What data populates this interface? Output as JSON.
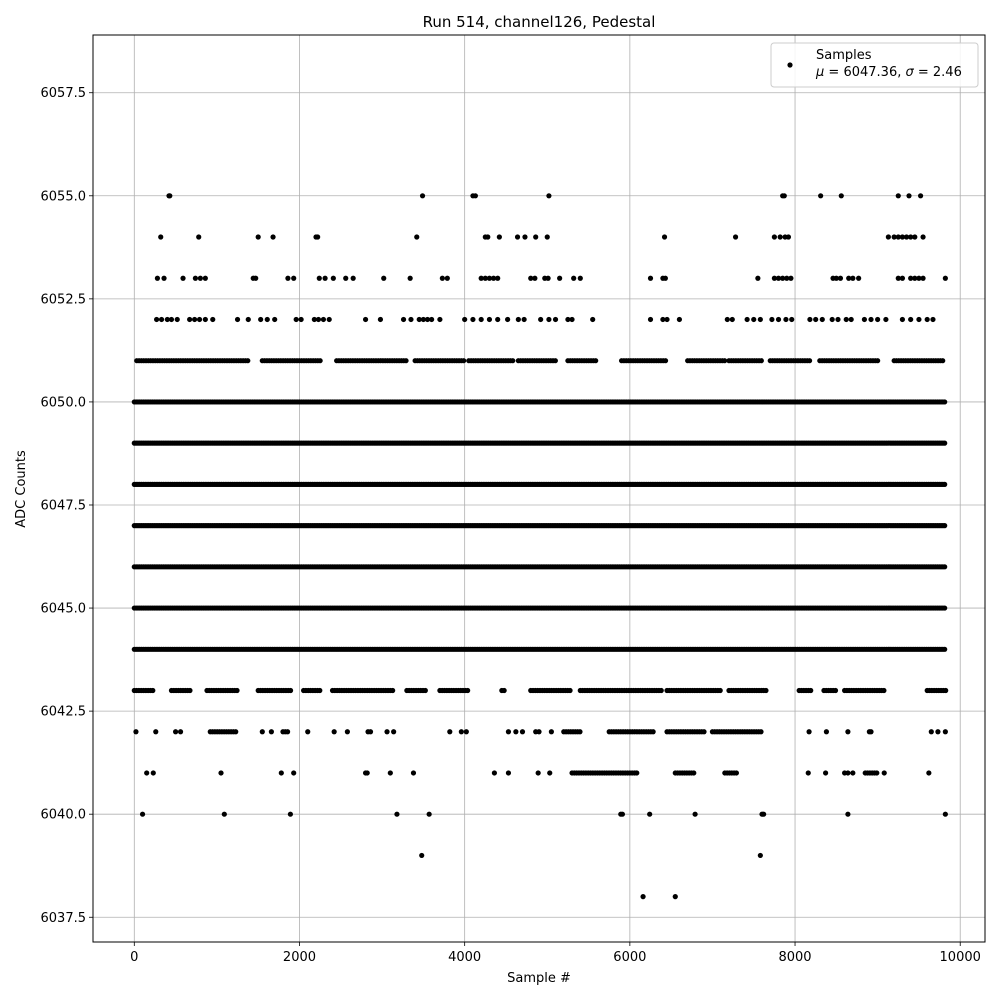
{
  "chart_data": {
    "type": "scatter",
    "title": "Run 514, channel126, Pedestal",
    "xlabel": "Sample #",
    "ylabel": "ADC Counts",
    "xlim": [
      -500,
      10300
    ],
    "ylim": [
      6036.9,
      6058.9
    ],
    "xticks": [
      0,
      2000,
      4000,
      6000,
      8000,
      10000
    ],
    "yticks": [
      6037.5,
      6040.0,
      6042.5,
      6045.0,
      6047.5,
      6050.0,
      6052.5,
      6055.0,
      6057.5
    ],
    "xtick_labels": [
      "0",
      "2000",
      "4000",
      "6000",
      "8000",
      "10000"
    ],
    "ytick_labels": [
      "6037.5",
      "6040.0",
      "6042.5",
      "6045.0",
      "6047.5",
      "6050.0",
      "6052.5",
      "6055.0",
      "6057.5"
    ],
    "grid": true,
    "legend_position": "top-right",
    "series": [
      {
        "name": "Samples",
        "stats_mu": "6047.36",
        "stats_sigma": "2.46",
        "color": "#000000",
        "marker": "circle",
        "n_samples": 9830,
        "x_range": [
          0,
          9830
        ],
        "dense_levels": [
          6044,
          6045,
          6046,
          6047,
          6048,
          6049,
          6050,
          6051
        ],
        "level_bands": [
          {
            "y": 6051,
            "segments": [
              [
                30,
                1380
              ],
              [
                1550,
                2250
              ],
              [
                2450,
                3300
              ],
              [
                3400,
                4000
              ],
              [
                4050,
                4600
              ],
              [
                4650,
                5100
              ],
              [
                5250,
                5600
              ],
              [
                5900,
                6450
              ],
              [
                6700,
                7150
              ],
              [
                7200,
                7600
              ],
              [
                7700,
                8200
              ],
              [
                8300,
                9000
              ],
              [
                9200,
                9800
              ]
            ]
          },
          {
            "y": 6050,
            "segments": [
              [
                0,
                9830
              ]
            ]
          },
          {
            "y": 6049,
            "segments": [
              [
                0,
                9830
              ]
            ]
          },
          {
            "y": 6048,
            "segments": [
              [
                0,
                9830
              ]
            ]
          },
          {
            "y": 6047,
            "segments": [
              [
                0,
                9830
              ]
            ]
          },
          {
            "y": 6046,
            "segments": [
              [
                0,
                9830
              ]
            ]
          },
          {
            "y": 6045,
            "segments": [
              [
                0,
                9830
              ]
            ]
          },
          {
            "y": 6044,
            "segments": [
              [
                0,
                9830
              ]
            ]
          },
          {
            "y": 6043,
            "segments": [
              [
                0,
                250
              ],
              [
                450,
                700
              ],
              [
                880,
                1250
              ],
              [
                1500,
                1900
              ],
              [
                2050,
                2250
              ],
              [
                2400,
                3150
              ],
              [
                3300,
                3550
              ],
              [
                3700,
                4050
              ],
              [
                4450,
                4500
              ],
              [
                4800,
                5300
              ],
              [
                5400,
                6400
              ],
              [
                6450,
                7100
              ],
              [
                7200,
                7650
              ],
              [
                8050,
                8200
              ],
              [
                8350,
                8500
              ],
              [
                8600,
                9100
              ],
              [
                9600,
                9830
              ]
            ]
          },
          {
            "y": 6042,
            "segments": [
              [
                920,
                1250
              ],
              [
                1800,
                1870
              ],
              [
                5200,
                5400
              ],
              [
                5750,
                6300
              ],
              [
                6450,
                6900
              ],
              [
                7000,
                7600
              ]
            ]
          },
          {
            "y": 6041,
            "segments": [
              [
                5300,
                6100
              ],
              [
                6550,
                6800
              ],
              [
                7150,
                7300
              ],
              [
                8850,
                9000
              ]
            ]
          }
        ],
        "sparse_points": [
          [
            420,
            6055
          ],
          [
            430,
            6055
          ],
          [
            3490,
            6055
          ],
          [
            4100,
            6055
          ],
          [
            4130,
            6055
          ],
          [
            5020,
            6055
          ],
          [
            7850,
            6055
          ],
          [
            7870,
            6055
          ],
          [
            8310,
            6055
          ],
          [
            8560,
            6055
          ],
          [
            9250,
            6055
          ],
          [
            9380,
            6055
          ],
          [
            9520,
            6055
          ],
          [
            320,
            6054
          ],
          [
            780,
            6054
          ],
          [
            1500,
            6054
          ],
          [
            1680,
            6054
          ],
          [
            2200,
            6054
          ],
          [
            2220,
            6054
          ],
          [
            3420,
            6054
          ],
          [
            4250,
            6054
          ],
          [
            4280,
            6054
          ],
          [
            4420,
            6054
          ],
          [
            4640,
            6054
          ],
          [
            4730,
            6054
          ],
          [
            4860,
            6054
          ],
          [
            5000,
            6054
          ],
          [
            6420,
            6054
          ],
          [
            7280,
            6054
          ],
          [
            7750,
            6054
          ],
          [
            7820,
            6054
          ],
          [
            7880,
            6054
          ],
          [
            7920,
            6054
          ],
          [
            9130,
            6054
          ],
          [
            9200,
            6054
          ],
          [
            9250,
            6054
          ],
          [
            9300,
            6054
          ],
          [
            9350,
            6054
          ],
          [
            9400,
            6054
          ],
          [
            9450,
            6054
          ],
          [
            9550,
            6054
          ],
          [
            280,
            6053
          ],
          [
            360,
            6053
          ],
          [
            590,
            6053
          ],
          [
            740,
            6053
          ],
          [
            800,
            6053
          ],
          [
            860,
            6053
          ],
          [
            1440,
            6053
          ],
          [
            1470,
            6053
          ],
          [
            1860,
            6053
          ],
          [
            1930,
            6053
          ],
          [
            2240,
            6053
          ],
          [
            2310,
            6053
          ],
          [
            2410,
            6053
          ],
          [
            2560,
            6053
          ],
          [
            2650,
            6053
          ],
          [
            3020,
            6053
          ],
          [
            3340,
            6053
          ],
          [
            3730,
            6053
          ],
          [
            3790,
            6053
          ],
          [
            4200,
            6053
          ],
          [
            4250,
            6053
          ],
          [
            4300,
            6053
          ],
          [
            4350,
            6053
          ],
          [
            4400,
            6053
          ],
          [
            4800,
            6053
          ],
          [
            4850,
            6053
          ],
          [
            4970,
            6053
          ],
          [
            5010,
            6053
          ],
          [
            5150,
            6053
          ],
          [
            5320,
            6053
          ],
          [
            5400,
            6053
          ],
          [
            6250,
            6053
          ],
          [
            6400,
            6053
          ],
          [
            6430,
            6053
          ],
          [
            7550,
            6053
          ],
          [
            7750,
            6053
          ],
          [
            7800,
            6053
          ],
          [
            7850,
            6053
          ],
          [
            7900,
            6053
          ],
          [
            7950,
            6053
          ],
          [
            8460,
            6053
          ],
          [
            8500,
            6053
          ],
          [
            8550,
            6053
          ],
          [
            8650,
            6053
          ],
          [
            8700,
            6053
          ],
          [
            8770,
            6053
          ],
          [
            9250,
            6053
          ],
          [
            9300,
            6053
          ],
          [
            9400,
            6053
          ],
          [
            9450,
            6053
          ],
          [
            9500,
            6053
          ],
          [
            9550,
            6053
          ],
          [
            9820,
            6053
          ],
          [
            270,
            6052
          ],
          [
            330,
            6052
          ],
          [
            400,
            6052
          ],
          [
            450,
            6052
          ],
          [
            520,
            6052
          ],
          [
            670,
            6052
          ],
          [
            730,
            6052
          ],
          [
            790,
            6052
          ],
          [
            860,
            6052
          ],
          [
            950,
            6052
          ],
          [
            1250,
            6052
          ],
          [
            1380,
            6052
          ],
          [
            1530,
            6052
          ],
          [
            1610,
            6052
          ],
          [
            1700,
            6052
          ],
          [
            1960,
            6052
          ],
          [
            2020,
            6052
          ],
          [
            2180,
            6052
          ],
          [
            2230,
            6052
          ],
          [
            2290,
            6052
          ],
          [
            2360,
            6052
          ],
          [
            2800,
            6052
          ],
          [
            2980,
            6052
          ],
          [
            3260,
            6052
          ],
          [
            3350,
            6052
          ],
          [
            3450,
            6052
          ],
          [
            3500,
            6052
          ],
          [
            3550,
            6052
          ],
          [
            3600,
            6052
          ],
          [
            3700,
            6052
          ],
          [
            4000,
            6052
          ],
          [
            4100,
            6052
          ],
          [
            4200,
            6052
          ],
          [
            4300,
            6052
          ],
          [
            4400,
            6052
          ],
          [
            4520,
            6052
          ],
          [
            4650,
            6052
          ],
          [
            4720,
            6052
          ],
          [
            4920,
            6052
          ],
          [
            5020,
            6052
          ],
          [
            5100,
            6052
          ],
          [
            5250,
            6052
          ],
          [
            5300,
            6052
          ],
          [
            5550,
            6052
          ],
          [
            6250,
            6052
          ],
          [
            6400,
            6052
          ],
          [
            6450,
            6052
          ],
          [
            6600,
            6052
          ],
          [
            7180,
            6052
          ],
          [
            7240,
            6052
          ],
          [
            7420,
            6052
          ],
          [
            7500,
            6052
          ],
          [
            7580,
            6052
          ],
          [
            7720,
            6052
          ],
          [
            7800,
            6052
          ],
          [
            7890,
            6052
          ],
          [
            7960,
            6052
          ],
          [
            8180,
            6052
          ],
          [
            8250,
            6052
          ],
          [
            8330,
            6052
          ],
          [
            8450,
            6052
          ],
          [
            8520,
            6052
          ],
          [
            8620,
            6052
          ],
          [
            8680,
            6052
          ],
          [
            8840,
            6052
          ],
          [
            8920,
            6052
          ],
          [
            9000,
            6052
          ],
          [
            9100,
            6052
          ],
          [
            9300,
            6052
          ],
          [
            9400,
            6052
          ],
          [
            9500,
            6052
          ],
          [
            9600,
            6052
          ],
          [
            9670,
            6052
          ],
          [
            20,
            6042
          ],
          [
            260,
            6042
          ],
          [
            500,
            6042
          ],
          [
            560,
            6042
          ],
          [
            1550,
            6042
          ],
          [
            1660,
            6042
          ],
          [
            2100,
            6042
          ],
          [
            2420,
            6042
          ],
          [
            2580,
            6042
          ],
          [
            2830,
            6042
          ],
          [
            2860,
            6042
          ],
          [
            3060,
            6042
          ],
          [
            3140,
            6042
          ],
          [
            3820,
            6042
          ],
          [
            3960,
            6042
          ],
          [
            4020,
            6042
          ],
          [
            4530,
            6042
          ],
          [
            4620,
            6042
          ],
          [
            4700,
            6042
          ],
          [
            4860,
            6042
          ],
          [
            4900,
            6042
          ],
          [
            5050,
            6042
          ],
          [
            8170,
            6042
          ],
          [
            8380,
            6042
          ],
          [
            8640,
            6042
          ],
          [
            8900,
            6042
          ],
          [
            8920,
            6042
          ],
          [
            9650,
            6042
          ],
          [
            9730,
            6042
          ],
          [
            9820,
            6042
          ],
          [
            150,
            6041
          ],
          [
            230,
            6041
          ],
          [
            1050,
            6041
          ],
          [
            1780,
            6041
          ],
          [
            1930,
            6041
          ],
          [
            2800,
            6041
          ],
          [
            2820,
            6041
          ],
          [
            3100,
            6041
          ],
          [
            3380,
            6041
          ],
          [
            4360,
            6041
          ],
          [
            4530,
            6041
          ],
          [
            4890,
            6041
          ],
          [
            5030,
            6041
          ],
          [
            8160,
            6041
          ],
          [
            8370,
            6041
          ],
          [
            8600,
            6041
          ],
          [
            8640,
            6041
          ],
          [
            8700,
            6041
          ],
          [
            9080,
            6041
          ],
          [
            9620,
            6041
          ],
          [
            100,
            6040
          ],
          [
            1090,
            6040
          ],
          [
            1890,
            6040
          ],
          [
            3180,
            6040
          ],
          [
            3570,
            6040
          ],
          [
            5890,
            6040
          ],
          [
            5910,
            6040
          ],
          [
            6240,
            6040
          ],
          [
            6790,
            6040
          ],
          [
            7600,
            6040
          ],
          [
            7620,
            6040
          ],
          [
            8640,
            6040
          ],
          [
            9820,
            6040
          ],
          [
            3480,
            6039
          ],
          [
            7580,
            6039
          ],
          [
            6160,
            6038
          ],
          [
            6550,
            6038
          ]
        ]
      }
    ]
  }
}
